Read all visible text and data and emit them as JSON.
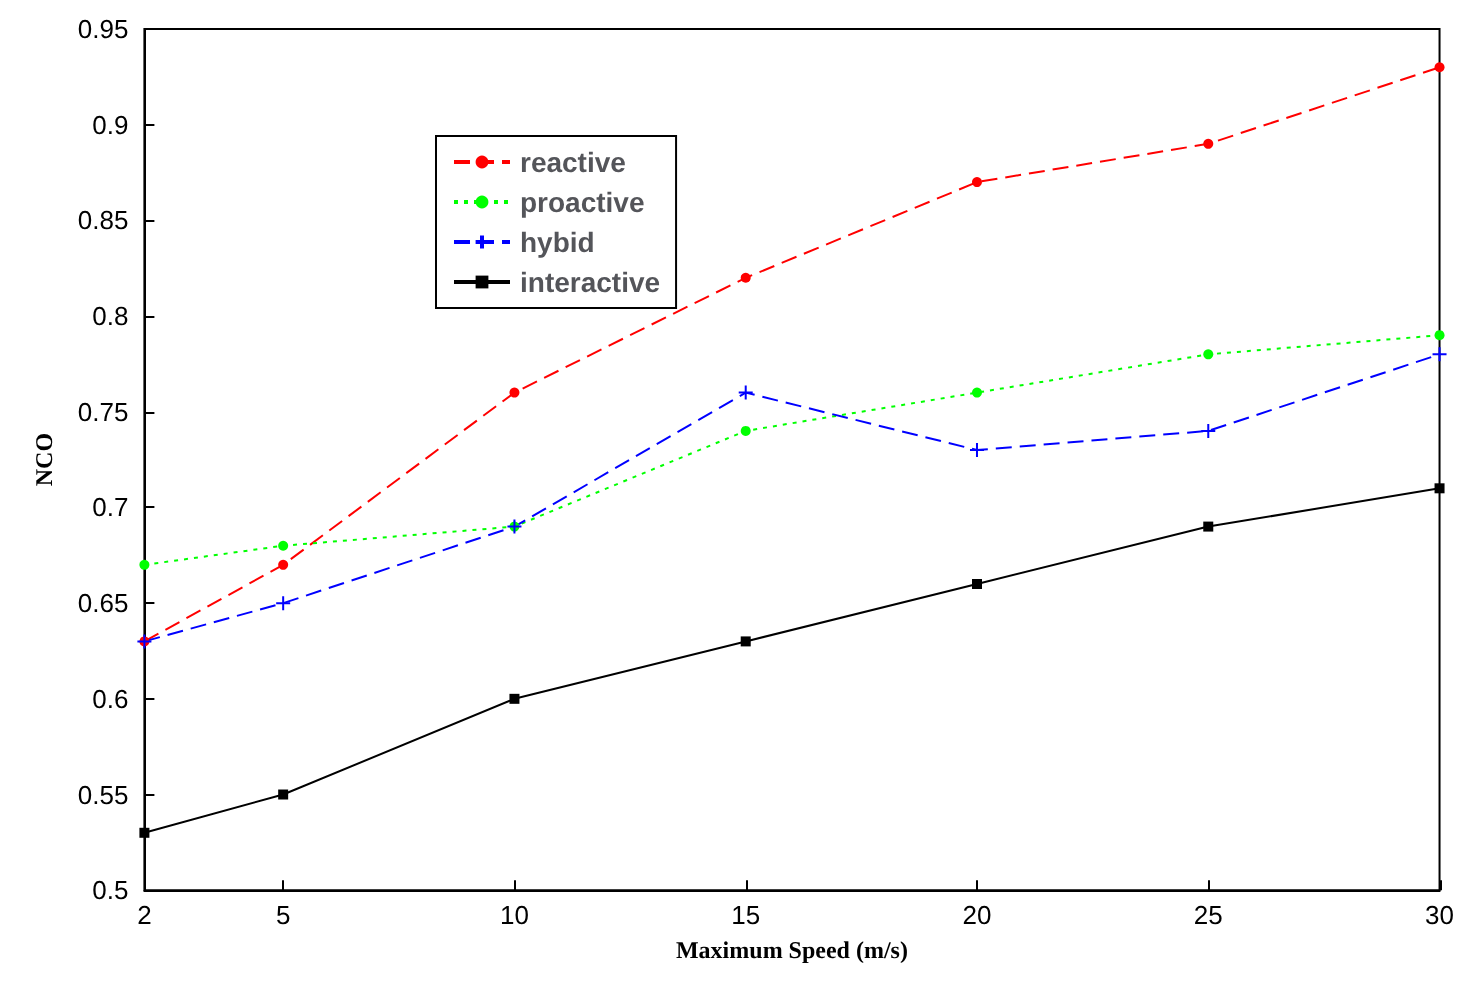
{
  "chart_data": {
    "type": "line",
    "xlabel": "Maximum Speed (m/s)",
    "ylabel": "NCO",
    "x": [
      2,
      5,
      10,
      15,
      20,
      25,
      30
    ],
    "series": [
      {
        "name": "reactive",
        "color": "#ff0000",
        "marker": "circle",
        "line_style": "dashed",
        "values": [
          0.63,
          0.67,
          0.76,
          0.82,
          0.87,
          0.89,
          0.93
        ]
      },
      {
        "name": "proactive",
        "color": "#00ff00",
        "marker": "circle",
        "line_style": "dotted",
        "values": [
          0.67,
          0.68,
          0.69,
          0.74,
          0.76,
          0.78,
          0.79
        ]
      },
      {
        "name": "hybid",
        "color": "#0000ff",
        "marker": "cross",
        "line_style": "dashed",
        "values": [
          0.63,
          0.65,
          0.69,
          0.76,
          0.73,
          0.74,
          0.78
        ]
      },
      {
        "name": "interactive",
        "color": "#000000",
        "marker": "square",
        "line_style": "solid",
        "values": [
          0.53,
          0.55,
          0.6,
          0.63,
          0.66,
          0.69,
          0.71
        ]
      }
    ],
    "xlim": [
      2,
      30
    ],
    "xticks": [
      2,
      5,
      10,
      15,
      20,
      25,
      30
    ],
    "ylim": [
      0.5,
      0.95
    ],
    "yticks": [
      0.5,
      0.55,
      0.6,
      0.65,
      0.7,
      0.75,
      0.8,
      0.85,
      0.9,
      0.95
    ],
    "grid": false,
    "legend": "top left"
  }
}
